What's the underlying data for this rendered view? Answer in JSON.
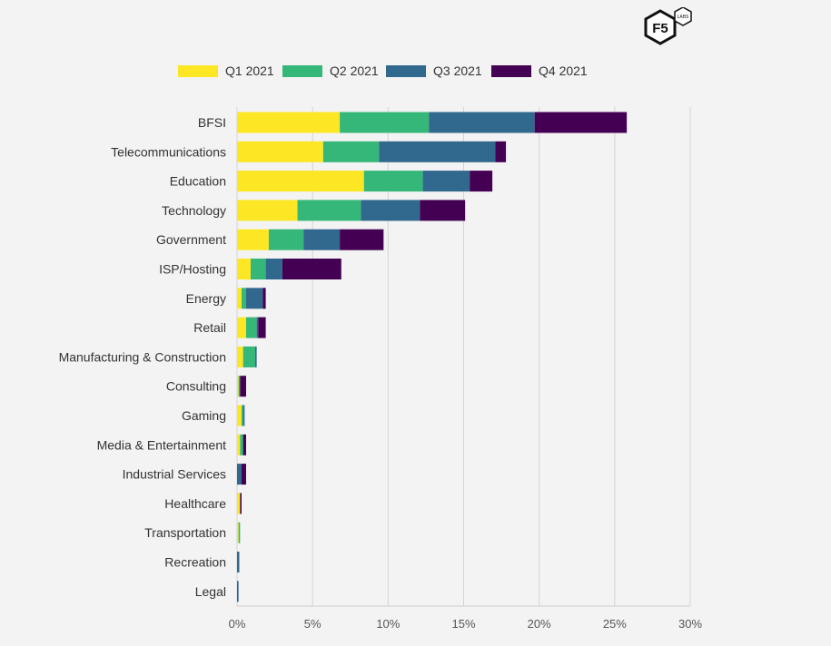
{
  "logo": {
    "main_text": "F5",
    "badge_text": "LABS"
  },
  "chart_data": {
    "type": "bar",
    "orientation": "horizontal",
    "stacked": true,
    "title": "",
    "xlabel": "",
    "ylabel": "",
    "categories": [
      "BFSI",
      "Telecommunications",
      "Education",
      "Technology",
      "Government",
      "ISP/Hosting",
      "Energy",
      "Retail",
      "Manufacturing & Construction",
      "Consulting",
      "Gaming",
      "Media & Entertainment",
      "Industrial Services",
      "Healthcare",
      "Transportation",
      "Recreation",
      "Legal"
    ],
    "series": [
      {
        "name": "Q1 2021",
        "color": "#fde725",
        "values": [
          6.8,
          5.7,
          8.4,
          4.0,
          2.1,
          0.9,
          0.3,
          0.6,
          0.4,
          0.1,
          0.3,
          0.2,
          0.0,
          0.2,
          0.1,
          0.0,
          0.0
        ]
      },
      {
        "name": "Q2 2021",
        "color": "#35b779",
        "values": [
          5.9,
          3.7,
          3.9,
          4.2,
          2.3,
          1.0,
          0.3,
          0.7,
          0.8,
          0.1,
          0.1,
          0.2,
          0.0,
          0.0,
          0.1,
          0.0,
          0.0
        ]
      },
      {
        "name": "Q3 2021",
        "color": "#31688e",
        "values": [
          7.0,
          7.7,
          3.1,
          3.9,
          2.4,
          1.1,
          1.1,
          0.1,
          0.1,
          0.0,
          0.1,
          0.0,
          0.3,
          0.0,
          0.0,
          0.15,
          0.1
        ]
      },
      {
        "name": "Q4 2021",
        "color": "#440154",
        "values": [
          6.1,
          0.7,
          1.5,
          3.0,
          2.9,
          3.9,
          0.2,
          0.5,
          0.0,
          0.4,
          0.0,
          0.2,
          0.3,
          0.1,
          0.0,
          0.0,
          0.0
        ]
      }
    ],
    "xlim": [
      0,
      30
    ],
    "xticks": [
      "0%",
      "5%",
      "10%",
      "15%",
      "20%",
      "25%",
      "30%"
    ],
    "grid": true,
    "legend_position": "top"
  }
}
